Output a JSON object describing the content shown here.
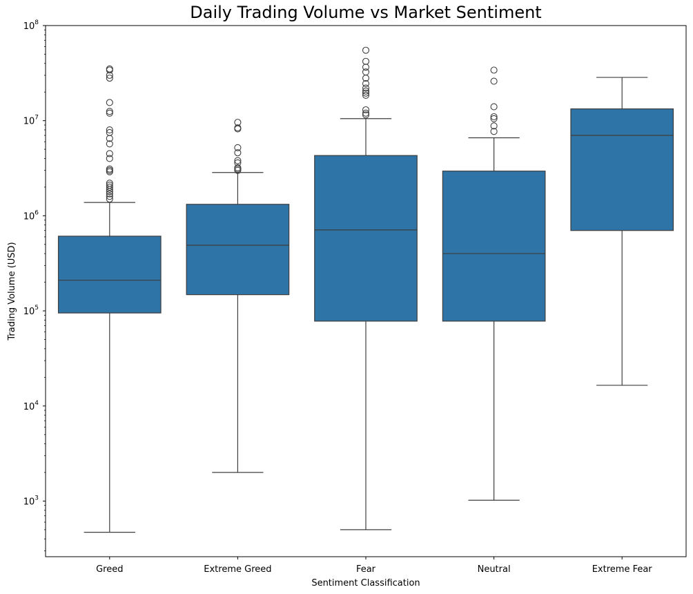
{
  "chart_data": {
    "type": "box",
    "title": "Daily Trading Volume vs Market Sentiment",
    "xlabel": "Sentiment Classification",
    "ylabel": "Trading Volume (USD)",
    "yscale": "log",
    "ylim": [
      260,
      100000000
    ],
    "grid": false,
    "box_color": "#2f74a6",
    "line_color": "#3d3d3d",
    "y_ticks": [
      {
        "value": 1000,
        "base": "10",
        "exp": "3"
      },
      {
        "value": 10000,
        "base": "10",
        "exp": "4"
      },
      {
        "value": 100000,
        "base": "10",
        "exp": "5"
      },
      {
        "value": 1000000,
        "base": "10",
        "exp": "6"
      },
      {
        "value": 10000000,
        "base": "10",
        "exp": "7"
      },
      {
        "value": 100000000,
        "base": "10",
        "exp": "8"
      }
    ],
    "categories": [
      "Greed",
      "Extreme Greed",
      "Fear",
      "Neutral",
      "Extreme Fear"
    ],
    "boxes": [
      {
        "category": "Greed",
        "whisker_low": 470,
        "q1": 95000,
        "median": 210000,
        "q3": 610000,
        "whisker_high": 1380000,
        "outliers": [
          1500000,
          1600000,
          1700000,
          1800000,
          1900000,
          2000000,
          2100000,
          2200000,
          2900000,
          3000000,
          3100000,
          4000000,
          4500000,
          5700000,
          6500000,
          7500000,
          8000000,
          12000000,
          12500000,
          15500000,
          28000000,
          30000000,
          34000000,
          35000000
        ]
      },
      {
        "category": "Extreme Greed",
        "whisker_low": 2000,
        "q1": 148000,
        "median": 490000,
        "q3": 1320000,
        "whisker_high": 2850000,
        "outliers": [
          3000000,
          3100000,
          3200000,
          3600000,
          3800000,
          4600000,
          5200000,
          8200000,
          8400000,
          9600000
        ]
      },
      {
        "category": "Fear",
        "whisker_low": 500,
        "q1": 78000,
        "median": 710000,
        "q3": 4300000,
        "whisker_high": 10500000,
        "outliers": [
          11500000,
          12000000,
          13000000,
          18500000,
          19500000,
          20500000,
          22000000,
          24500000,
          28000000,
          32500000,
          36500000,
          42000000,
          55000000
        ]
      },
      {
        "category": "Neutral",
        "whisker_low": 1020,
        "q1": 78000,
        "median": 400000,
        "q3": 2950000,
        "whisker_high": 6600000,
        "outliers": [
          7700000,
          8800000,
          10500000,
          11000000,
          14000000,
          26000000,
          34000000
        ]
      },
      {
        "category": "Extreme Fear",
        "whisker_low": 16500,
        "q1": 700000,
        "median": 7000000,
        "q3": 13300000,
        "whisker_high": 28500000,
        "outliers": []
      }
    ]
  }
}
